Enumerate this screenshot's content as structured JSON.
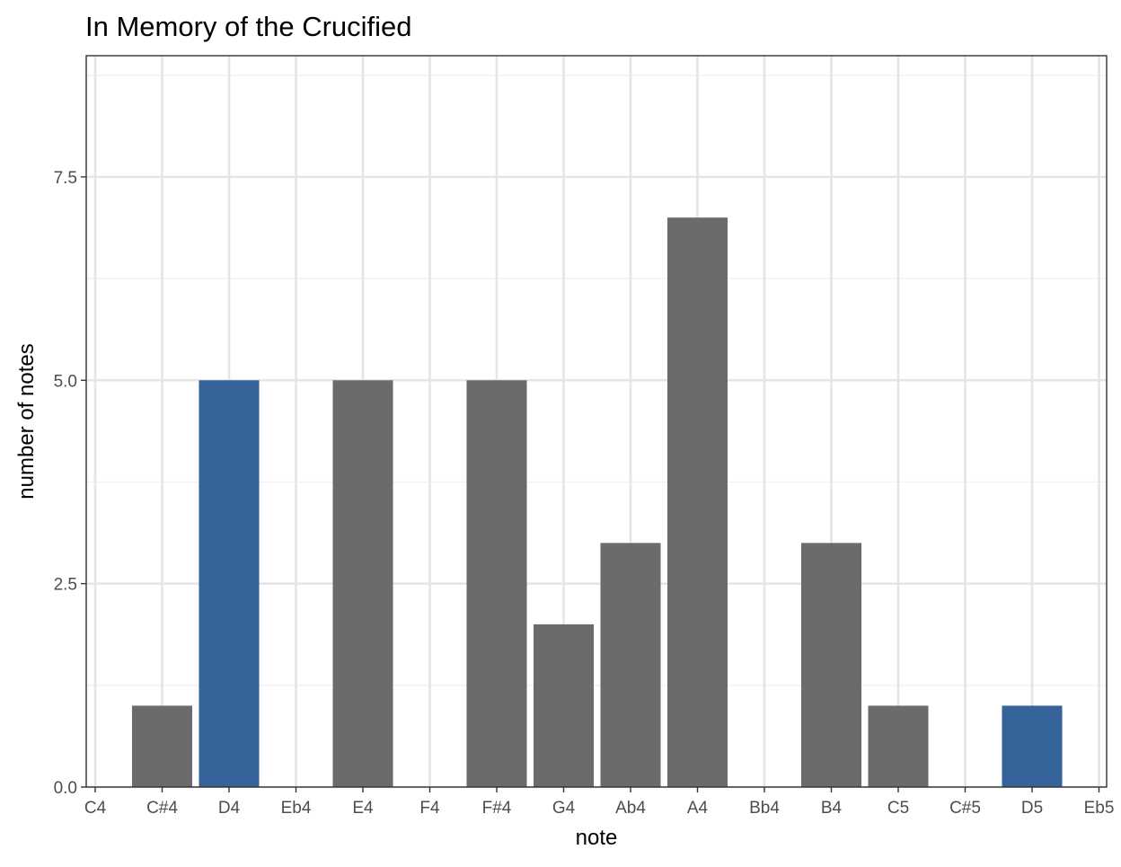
{
  "chart_data": {
    "type": "bar",
    "title": "In Memory of the Crucified",
    "xlabel": "note",
    "ylabel": "number of notes",
    "categories": [
      "C4",
      "C#4",
      "D4",
      "Eb4",
      "E4",
      "F4",
      "F#4",
      "G4",
      "Ab4",
      "A4",
      "Bb4",
      "B4",
      "C5",
      "C#5",
      "D5",
      "Eb5"
    ],
    "values": [
      0,
      1,
      5,
      0,
      5,
      0,
      5,
      2,
      3,
      7,
      0,
      3,
      1,
      0,
      1,
      0
    ],
    "highlight": [
      false,
      false,
      true,
      false,
      false,
      false,
      false,
      false,
      false,
      false,
      false,
      false,
      false,
      false,
      true,
      false
    ],
    "ylim": [
      0,
      9
    ],
    "yticks": [
      0,
      2.5,
      5,
      7.5
    ],
    "ytick_labels": [
      "0.0",
      "2.5",
      "5.0",
      "7.5"
    ],
    "grid": true,
    "legend": "none",
    "colors": {
      "bar": "#6b6b6b",
      "highlight": "#366399",
      "grid_major": "#e5e5e5",
      "grid_minor": "#f1f1f1",
      "panel_border": "#333333",
      "tick_text": "#4d4d4d",
      "text": "#000000"
    }
  }
}
